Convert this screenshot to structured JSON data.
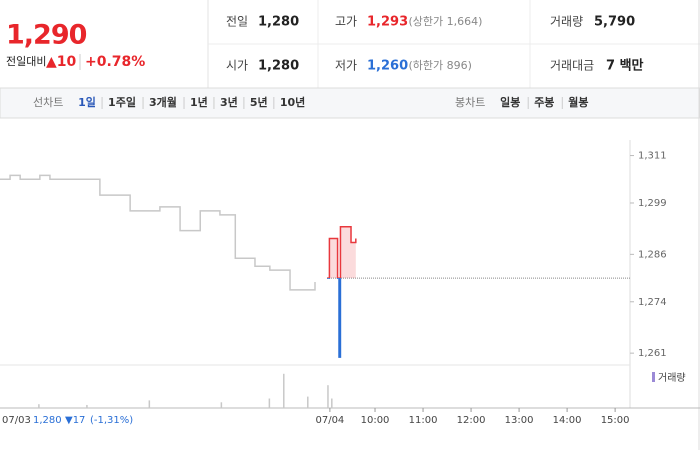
{
  "header": {
    "price": "1,290",
    "change_label": "전일대비",
    "change": "▲10",
    "change_pct": "+0.78%"
  },
  "stats": [
    [
      {
        "label": "전일",
        "value": "1,280"
      },
      {
        "label": "고가",
        "value": "1,293",
        "note": "(상한가 1,664)"
      },
      {
        "label": "거래량",
        "value": "5,790"
      }
    ],
    [
      {
        "label": "시가",
        "value": "1,280"
      },
      {
        "label": "저가",
        "value": "1,260",
        "note": "(하한가 896)"
      },
      {
        "label": "거래대금",
        "value": "7 백만"
      }
    ]
  ],
  "tabs": {
    "line_label": "선차트",
    "line_items": [
      "1일",
      "1주일",
      "3개월",
      "1년",
      "3년",
      "5년",
      "10년"
    ],
    "candle_label": "봉차트",
    "candle_items": [
      "일봉",
      "주봉",
      "월봉"
    ]
  },
  "chart_data": {
    "type": "line",
    "xlim": [
      2.19,
      15.31
    ],
    "ylim": [
      1258,
      1320
    ],
    "xticks": [
      {
        "value": 9.06,
        "label": "07/04"
      },
      {
        "value": 10,
        "label": "10:00"
      },
      {
        "value": 11,
        "label": "11:00"
      },
      {
        "value": 12,
        "label": "12:00"
      },
      {
        "value": 13,
        "label": "13:00"
      },
      {
        "value": 14,
        "label": "14:00"
      },
      {
        "value": 15,
        "label": "15:00"
      }
    ],
    "yticks": [
      {
        "value": 1261,
        "label": "1,261"
      },
      {
        "value": 1274,
        "label": "1,274"
      },
      {
        "value": 1286,
        "label": "1,286"
      },
      {
        "value": 1299,
        "label": "1,299"
      },
      {
        "value": 1311,
        "label": "1,311"
      }
    ],
    "grid": false,
    "reference_line": 1280,
    "series": [
      {
        "color": "#c8c8c8",
        "x": [
          2.19,
          2.4,
          2.61,
          3.02,
          3.23,
          4.27,
          4.9,
          5.52,
          5.94,
          6.36,
          6.77,
          7.09,
          7.5,
          7.81,
          8.23,
          8.75
        ],
        "values": [
          1305,
          1306,
          1305,
          1306,
          1305,
          1301,
          1297,
          1298,
          1292,
          1297,
          1296,
          1285,
          1283,
          1282,
          1277,
          1279
        ]
      },
      {
        "color": "#e8383d",
        "down_color": "#2a6fd6",
        "x": [
          9.0,
          9.05,
          9.2,
          9.22,
          9.25,
          9.28,
          9.45,
          9.5,
          9.6
        ],
        "values": [
          1280,
          1290,
          1290,
          1280,
          1260,
          1293,
          1293,
          1289,
          1290
        ]
      }
    ],
    "volume": {
      "name": "거래량",
      "color": "#9b8ad6",
      "vlim": [
        0,
        100
      ],
      "x": [
        3.0,
        4.0,
        5.3,
        6.8,
        7.8,
        8.1,
        8.6,
        9.02,
        9.1
      ],
      "values": [
        10,
        8,
        20,
        15,
        25,
        90,
        30,
        60,
        25
      ]
    },
    "footer": {
      "date": "07/03",
      "close": "1,280",
      "change": "▼17",
      "change_pct": "(-1,31%)"
    }
  }
}
